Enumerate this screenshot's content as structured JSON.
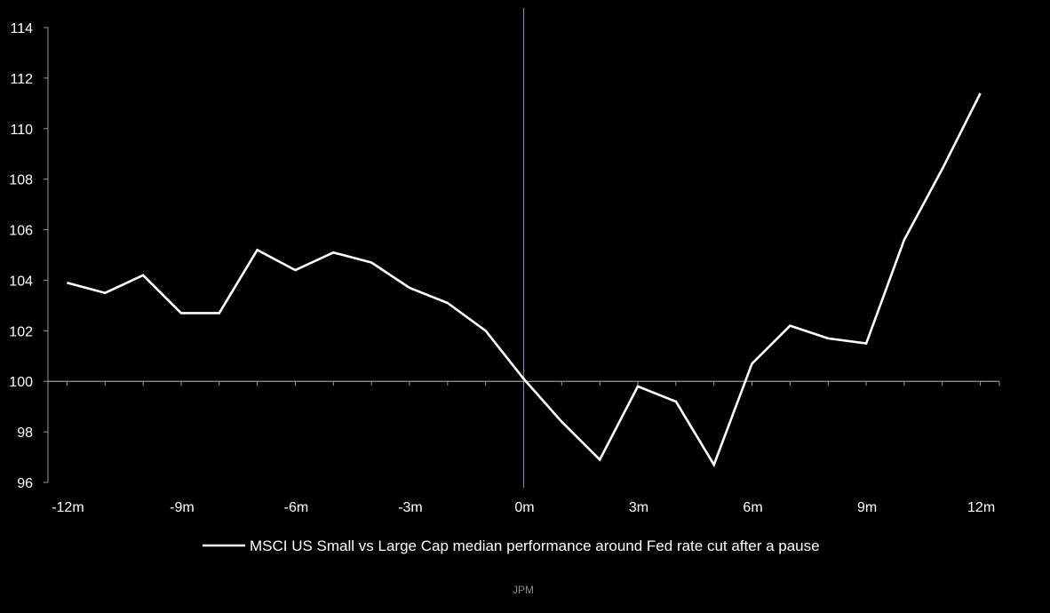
{
  "chart_data": {
    "type": "line",
    "title": "",
    "xlabel": "",
    "ylabel": "",
    "x_tick_labels": [
      "-12m",
      "-9m",
      "-6m",
      "-3m",
      "0m",
      "3m",
      "6m",
      "9m",
      "12m"
    ],
    "x_ticks": [
      -12,
      -9,
      -6,
      -3,
      0,
      3,
      6,
      9,
      12
    ],
    "y_ticks": [
      96,
      98,
      100,
      102,
      104,
      106,
      108,
      110,
      112,
      114
    ],
    "xlim": [
      -12.5,
      12.5
    ],
    "ylim": [
      96,
      114
    ],
    "x": [
      -12,
      -11,
      -10,
      -9,
      -8,
      -7,
      -6,
      -5,
      -4,
      -3,
      -2,
      -1,
      0,
      1,
      2,
      3,
      4,
      5,
      6,
      7,
      8,
      9,
      10,
      11,
      12
    ],
    "series": [
      {
        "name": "MSCI US Small vs Large Cap median performance around Fed rate cut after a pause",
        "values": [
          103.9,
          103.5,
          104.2,
          102.7,
          102.7,
          105.2,
          104.4,
          105.1,
          104.7,
          103.7,
          103.1,
          102.0,
          100.1,
          98.4,
          96.9,
          99.8,
          99.2,
          96.7,
          100.7,
          102.2,
          101.7,
          101.5,
          105.6,
          108.4,
          111.4
        ],
        "color": "#ffffff"
      }
    ],
    "reference_lines": [
      {
        "axis": "x",
        "value": 0,
        "color": "#4a90d9"
      },
      {
        "axis": "y",
        "value": 100,
        "color": "#9a9a9a"
      }
    ],
    "grid": false,
    "legend_position": "bottom-center",
    "background_color": "#000000",
    "axis_color": "#9a9a9a"
  },
  "source": "JPM"
}
